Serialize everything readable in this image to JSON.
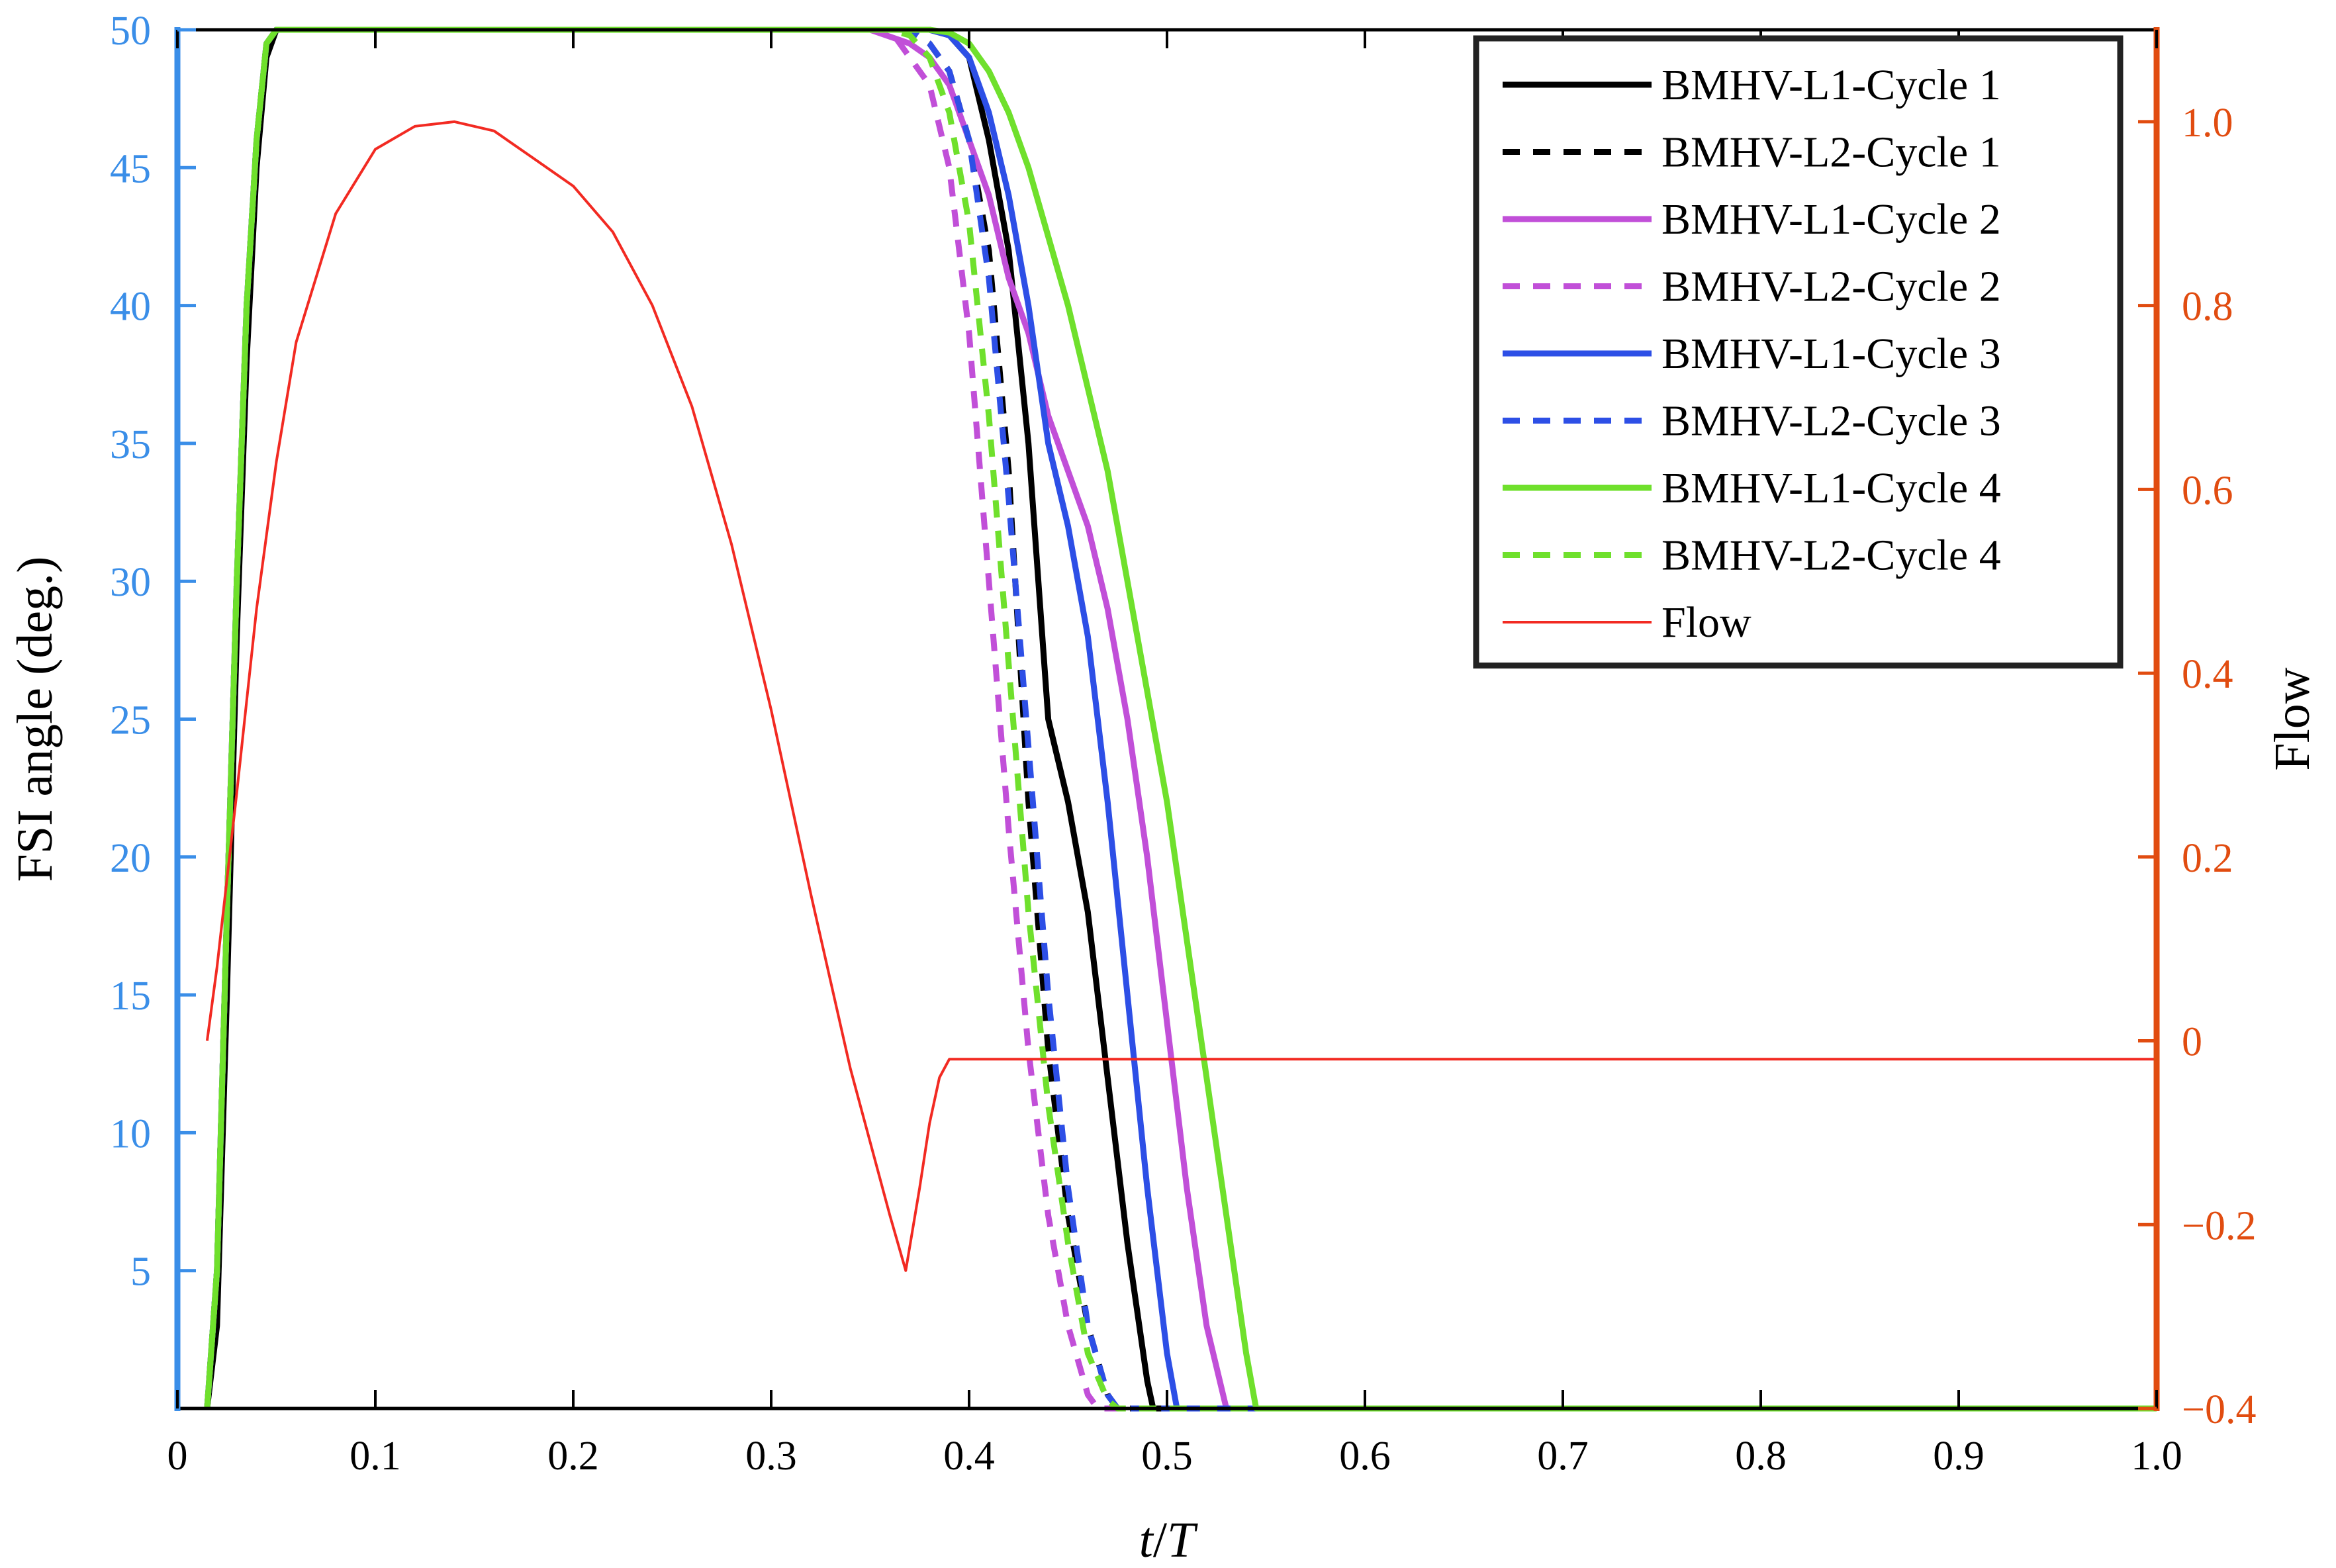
{
  "chart_data": {
    "type": "line",
    "xlabel_italic_parts": [
      "t",
      "/",
      "T"
    ],
    "ylabel_left": "FSI angle (deg.)",
    "ylabel_right": "Flow",
    "xlim": [
      0,
      1.0
    ],
    "ylim_left": [
      0,
      50
    ],
    "ylim_right": [
      -0.4,
      1.1
    ],
    "xticks": [
      0,
      0.1,
      0.2,
      0.3,
      0.4,
      0.5,
      0.6,
      0.7,
      0.8,
      0.9,
      1.0
    ],
    "xtick_labels": [
      "0",
      "0.1",
      "0.2",
      "0.3",
      "0.4",
      "0.5",
      "0.6",
      "0.7",
      "0.8",
      "0.9",
      "1.0"
    ],
    "yticks_left": [
      5,
      10,
      15,
      20,
      25,
      30,
      35,
      40,
      45,
      50
    ],
    "ytick_labels_left": [
      "5",
      "10",
      "15",
      "20",
      "25",
      "30",
      "35",
      "40",
      "45",
      "50"
    ],
    "yticks_right": [
      -0.4,
      -0.2,
      0,
      0.2,
      0.4,
      0.6,
      0.8,
      1.0
    ],
    "ytick_labels_right": [
      "−0.4",
      "−0.2",
      "0",
      "0.2",
      "0.4",
      "0.6",
      "0.8",
      "1.0"
    ],
    "grid": false,
    "legend_position": "top-right",
    "colors": {
      "black": "#000000",
      "purple": "#C14FD8",
      "blue": "#2D4FE6",
      "green": "#6FE02C",
      "flow": "#F22A22",
      "left_axis": "#3A8EE8",
      "right_axis": "#E14C10"
    },
    "series": [
      {
        "name": "BMHV-L1-Cycle 1",
        "axis": "left",
        "color": "#000000",
        "dash": false,
        "x": [
          0.015,
          0.02,
          0.025,
          0.03,
          0.035,
          0.04,
          0.045,
          0.05,
          0.06,
          0.38,
          0.39,
          0.4,
          0.41,
          0.42,
          0.43,
          0.44,
          0.45,
          0.46,
          0.47,
          0.48,
          0.49,
          0.493,
          1.0
        ],
        "y": [
          0,
          3,
          15,
          28,
          38,
          45,
          49,
          50,
          50,
          50,
          49.8,
          49,
          46,
          42,
          35,
          25,
          22,
          18,
          12,
          6,
          1,
          0,
          0
        ]
      },
      {
        "name": "BMHV-L2-Cycle 1",
        "axis": "left",
        "color": "#000000",
        "dash": true,
        "x": [
          0.015,
          0.02,
          0.025,
          0.03,
          0.035,
          0.04,
          0.045,
          0.05,
          0.06,
          0.37,
          0.38,
          0.39,
          0.4,
          0.41,
          0.42,
          0.43,
          0.44,
          0.45,
          0.46,
          0.47,
          0.475,
          1.0
        ],
        "y": [
          0,
          5,
          18,
          30,
          40,
          46,
          49.5,
          50,
          50,
          50,
          49.5,
          48.5,
          46,
          42,
          34,
          22,
          13,
          7,
          3,
          0.5,
          0,
          0
        ]
      },
      {
        "name": "BMHV-L1-Cycle 2",
        "axis": "left",
        "color": "#C14FD8",
        "dash": false,
        "x": [
          0.015,
          0.02,
          0.025,
          0.03,
          0.035,
          0.04,
          0.045,
          0.05,
          0.06,
          0.35,
          0.37,
          0.38,
          0.39,
          0.4,
          0.41,
          0.42,
          0.43,
          0.44,
          0.45,
          0.46,
          0.47,
          0.48,
          0.49,
          0.5,
          0.51,
          0.52,
          0.53,
          1.0
        ],
        "y": [
          0,
          5,
          18,
          30,
          40,
          46,
          49.5,
          50,
          50,
          50,
          49.5,
          49,
          48,
          46,
          44,
          41,
          39,
          36,
          34,
          32,
          29,
          25,
          20,
          14,
          8,
          3,
          0,
          0
        ]
      },
      {
        "name": "BMHV-L2-Cycle 2",
        "axis": "left",
        "color": "#C14FD8",
        "dash": true,
        "x": [
          0.015,
          0.02,
          0.025,
          0.03,
          0.035,
          0.04,
          0.045,
          0.05,
          0.06,
          0.36,
          0.37,
          0.38,
          0.39,
          0.4,
          0.41,
          0.42,
          0.43,
          0.44,
          0.45,
          0.46,
          0.465,
          1.0
        ],
        "y": [
          0,
          5,
          18,
          30,
          40,
          46,
          49.5,
          50,
          50,
          50,
          49,
          48,
          45,
          39,
          30,
          21,
          13,
          7,
          3,
          0.5,
          0,
          0
        ]
      },
      {
        "name": "BMHV-L1-Cycle 3",
        "axis": "left",
        "color": "#2D4FE6",
        "dash": false,
        "x": [
          0.015,
          0.02,
          0.025,
          0.03,
          0.035,
          0.04,
          0.045,
          0.05,
          0.06,
          0.38,
          0.39,
          0.4,
          0.41,
          0.42,
          0.43,
          0.44,
          0.45,
          0.46,
          0.47,
          0.48,
          0.49,
          0.5,
          0.505,
          1.0
        ],
        "y": [
          0,
          5,
          18,
          30,
          40,
          46,
          49.5,
          50,
          50,
          50,
          49.8,
          49,
          47,
          44,
          40,
          35,
          32,
          28,
          22,
          15,
          8,
          2,
          0,
          0
        ]
      },
      {
        "name": "BMHV-L2-Cycle 3",
        "axis": "left",
        "color": "#2D4FE6",
        "dash": true,
        "x": [
          0.015,
          0.02,
          0.025,
          0.03,
          0.035,
          0.04,
          0.045,
          0.05,
          0.06,
          0.37,
          0.38,
          0.39,
          0.4,
          0.41,
          0.42,
          0.43,
          0.44,
          0.45,
          0.46,
          0.47,
          0.475,
          1.0
        ],
        "y": [
          0,
          5,
          18,
          30,
          40,
          46,
          49.5,
          50,
          50,
          50,
          49.5,
          48.5,
          46,
          41,
          33,
          24,
          15,
          8,
          3,
          0.5,
          0,
          0
        ]
      },
      {
        "name": "BMHV-L1-Cycle 4",
        "axis": "left",
        "color": "#6FE02C",
        "dash": false,
        "x": [
          0.015,
          0.02,
          0.025,
          0.03,
          0.035,
          0.04,
          0.045,
          0.05,
          0.06,
          0.38,
          0.39,
          0.4,
          0.41,
          0.42,
          0.43,
          0.44,
          0.45,
          0.46,
          0.47,
          0.48,
          0.49,
          0.5,
          0.51,
          0.52,
          0.53,
          0.54,
          0.545,
          1.0
        ],
        "y": [
          0,
          5,
          18,
          30,
          40,
          46,
          49.5,
          50,
          50,
          50,
          49.9,
          49.5,
          48.5,
          47,
          45,
          42.5,
          40,
          37,
          34,
          30,
          26,
          22,
          17,
          12,
          7,
          2,
          0,
          0
        ]
      },
      {
        "name": "BMHV-L2-Cycle 4",
        "axis": "left",
        "color": "#6FE02C",
        "dash": true,
        "x": [
          0.015,
          0.02,
          0.025,
          0.03,
          0.035,
          0.04,
          0.045,
          0.05,
          0.06,
          0.36,
          0.37,
          0.38,
          0.39,
          0.4,
          0.41,
          0.42,
          0.43,
          0.44,
          0.45,
          0.46,
          0.47,
          0.475,
          1.0
        ],
        "y": [
          0,
          5,
          18,
          30,
          40,
          46,
          49.5,
          50,
          50,
          50,
          49.8,
          49,
          47,
          43,
          36,
          27,
          18,
          11,
          6,
          2,
          0.3,
          0,
          0
        ]
      },
      {
        "name": "Flow",
        "axis": "right",
        "color": "#F22A22",
        "dash": false,
        "x": [
          0.015,
          0.02,
          0.03,
          0.04,
          0.05,
          0.06,
          0.08,
          0.1,
          0.12,
          0.14,
          0.16,
          0.18,
          0.2,
          0.22,
          0.24,
          0.26,
          0.28,
          0.3,
          0.32,
          0.34,
          0.36,
          0.368,
          0.375,
          0.38,
          0.385,
          0.39,
          1.0
        ],
        "y": [
          0,
          0.08,
          0.27,
          0.47,
          0.63,
          0.76,
          0.9,
          0.97,
          0.995,
          1.0,
          0.99,
          0.96,
          0.93,
          0.88,
          0.8,
          0.69,
          0.54,
          0.36,
          0.16,
          -0.03,
          -0.19,
          -0.25,
          -0.16,
          -0.09,
          -0.04,
          -0.02,
          -0.02
        ]
      }
    ]
  }
}
